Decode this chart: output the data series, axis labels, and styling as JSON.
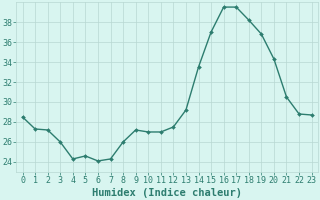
{
  "x": [
    0,
    1,
    2,
    3,
    4,
    5,
    6,
    7,
    8,
    9,
    10,
    11,
    12,
    13,
    14,
    15,
    16,
    17,
    18,
    19,
    20,
    21,
    22,
    23
  ],
  "y": [
    28.5,
    27.3,
    27.2,
    26.0,
    24.3,
    24.6,
    24.1,
    24.3,
    26.0,
    27.2,
    27.0,
    27.0,
    27.5,
    29.2,
    33.5,
    37.0,
    39.5,
    39.5,
    38.2,
    36.8,
    34.3,
    30.5,
    28.8,
    28.7
  ],
  "line_color": "#2d7d6f",
  "marker": "D",
  "marker_size": 2.0,
  "line_width": 1.0,
  "xlabel": "Humidex (Indice chaleur)",
  "xlim": [
    -0.5,
    23.5
  ],
  "ylim": [
    23.0,
    40.0
  ],
  "yticks": [
    24,
    26,
    28,
    30,
    32,
    34,
    36,
    38
  ],
  "xticks": [
    0,
    1,
    2,
    3,
    4,
    5,
    6,
    7,
    8,
    9,
    10,
    11,
    12,
    13,
    14,
    15,
    16,
    17,
    18,
    19,
    20,
    21,
    22,
    23
  ],
  "xtick_labels": [
    "0",
    "1",
    "2",
    "3",
    "4",
    "5",
    "6",
    "7",
    "8",
    "9",
    "10",
    "11",
    "12",
    "13",
    "14",
    "15",
    "16",
    "17",
    "18",
    "19",
    "20",
    "21",
    "22",
    "23"
  ],
  "bg_color": "#d8f5f0",
  "grid_color": "#b8d8d2",
  "line_fg": "#2d7d6f",
  "tick_fontsize": 6,
  "xlabel_fontsize": 7.5
}
